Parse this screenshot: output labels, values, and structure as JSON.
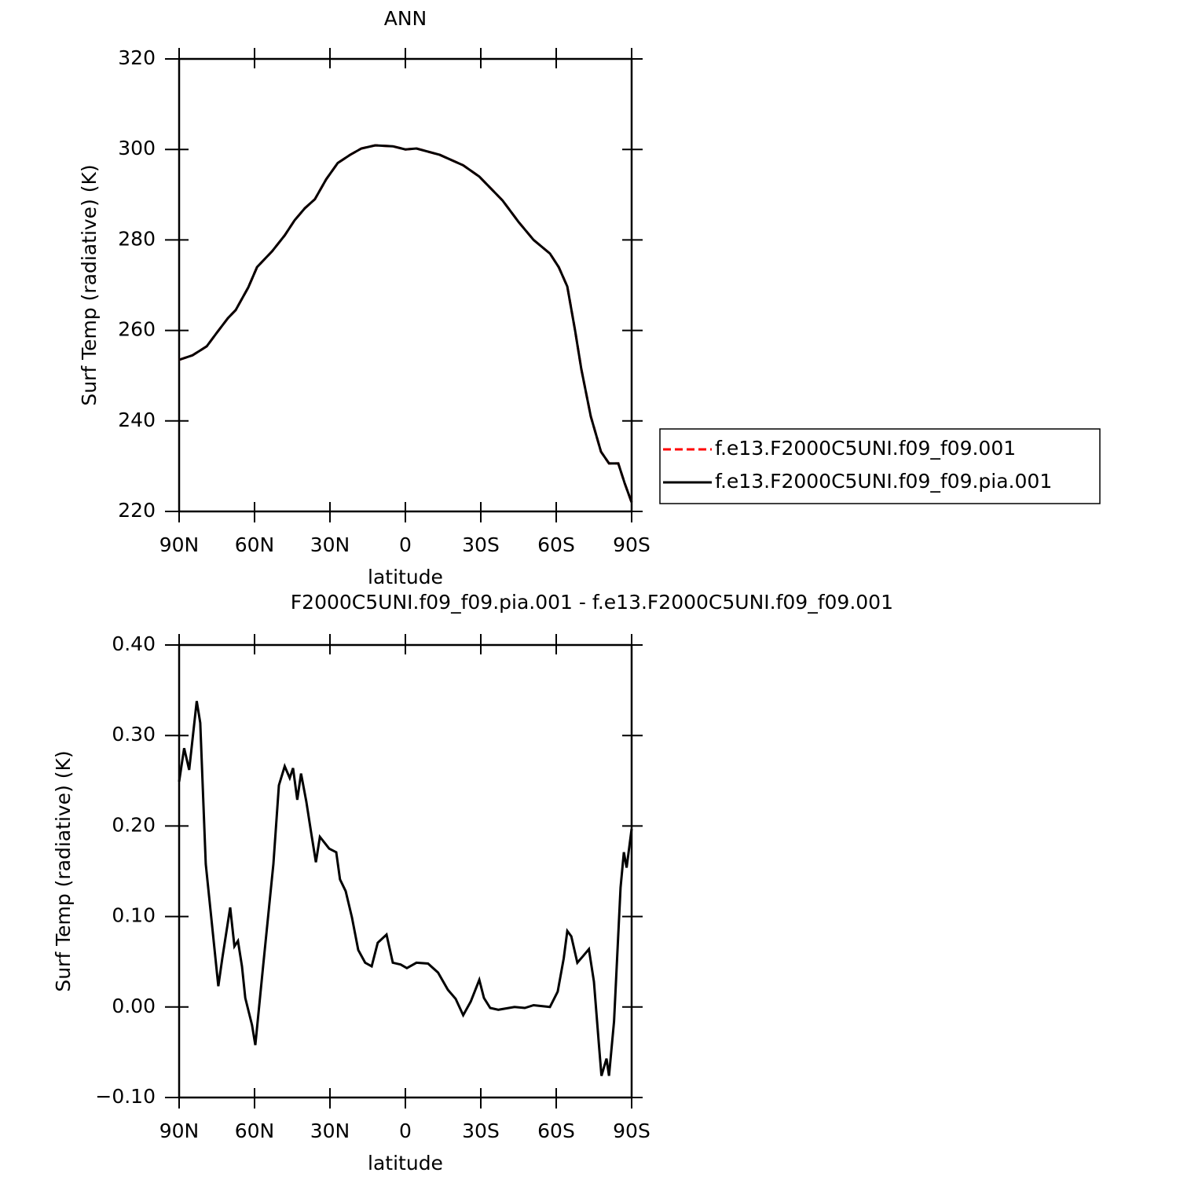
{
  "chart_data": [
    {
      "type": "line",
      "title": "ANN",
      "x_label": "latitude",
      "y_label": "Surf Temp (radiative) (K)",
      "x": [
        90,
        84.7,
        79,
        75,
        70.6,
        67.5,
        62.5,
        59,
        53,
        48,
        44,
        40,
        36,
        31.5,
        26.9,
        22,
        17.5,
        12,
        5,
        0,
        -4.4,
        -13.7,
        -23,
        -29.4,
        -38.7,
        -45,
        -51,
        -57.5,
        -61,
        -64.4,
        -67.5,
        -70,
        -73.75,
        -77.8,
        -81,
        -84.7,
        -87.2,
        -90
      ],
      "series": [
        {
          "name": "f.e13.F2000C5UNI.f09_f09.001",
          "color": "#ff0000",
          "linestyle": "dashed",
          "values": [
            253.5,
            254.5,
            256.5,
            259.5,
            262.7,
            264.5,
            269.5,
            274,
            277.5,
            281,
            284.4,
            287,
            289,
            293.4,
            297,
            298.8,
            300.2,
            300.9,
            300.7,
            300,
            300.2,
            298.8,
            296.5,
            294,
            288.7,
            284,
            280,
            277,
            274,
            269.7,
            260,
            251.4,
            241,
            233.2,
            230.6,
            230.6,
            226.3,
            222
          ]
        },
        {
          "name": "f.e13.F2000C5UNI.f09_f09.pia.001",
          "color": "#000000",
          "linestyle": "solid",
          "values": [
            253.5,
            254.5,
            256.5,
            259.5,
            262.7,
            264.5,
            269.5,
            274,
            277.5,
            281,
            284.4,
            287,
            289,
            293.4,
            297,
            298.8,
            300.2,
            300.9,
            300.7,
            300,
            300.2,
            298.8,
            296.5,
            294,
            288.7,
            284,
            280,
            277,
            274,
            269.7,
            260,
            251.4,
            241,
            233.2,
            230.6,
            230.6,
            226.3,
            222
          ]
        }
      ],
      "xlim": [
        90,
        -90
      ],
      "xticks": [
        {
          "value": 90,
          "label": "90N"
        },
        {
          "value": 60,
          "label": "60N"
        },
        {
          "value": 30,
          "label": "30N"
        },
        0,
        {
          "value": -30,
          "label": "30S"
        },
        {
          "value": -60,
          "label": "60S"
        },
        {
          "value": -90,
          "label": "90S"
        }
      ],
      "ylim": [
        220,
        320
      ],
      "yticks": [
        220,
        240,
        260,
        280,
        300,
        320
      ],
      "legend": "right"
    },
    {
      "type": "line",
      "title": "F2000C5UNI.f09_f09.pia.001 - f.e13.F2000C5UNI.f09_f09.001",
      "x_label": "latitude",
      "y_label": "Surf Temp (radiative) (K)",
      "x": [
        90,
        88,
        86,
        83,
        81.6,
        79.4,
        74.4,
        72.8,
        69.7,
        68,
        66.6,
        65,
        63.7,
        61,
        59.7,
        56.6,
        52.5,
        50.3,
        48,
        46,
        44.7,
        43,
        41.5,
        39.4,
        37.5,
        35.6,
        34,
        32,
        30.3,
        27.5,
        26,
        23.75,
        21.25,
        18.75,
        16,
        13.4,
        11,
        7.5,
        5,
        1.9,
        -0.6,
        -4.4,
        -9,
        -13,
        -16.9,
        -20,
        -23,
        -26,
        -29.4,
        -31.25,
        -33.75,
        -37,
        -43.4,
        -47.5,
        -51,
        -57.5,
        -60.6,
        -63,
        -64.4,
        -66,
        -68.4,
        -70.6,
        -73,
        -75,
        -77,
        -78,
        -80,
        -81,
        -83,
        -85.6,
        -86.9,
        -88,
        -90
      ],
      "series": [
        {
          "color": "#000000",
          "linestyle": "solid",
          "values": [
            0.249,
            0.286,
            0.262,
            0.338,
            0.314,
            0.158,
            0.023,
            0.054,
            0.11,
            0.067,
            0.073,
            0.045,
            0.01,
            -0.02,
            -0.042,
            0.045,
            0.158,
            0.245,
            0.266,
            0.253,
            0.264,
            0.229,
            0.258,
            0.227,
            0.193,
            0.16,
            0.188,
            0.181,
            0.175,
            0.171,
            0.141,
            0.128,
            0.099,
            0.063,
            0.049,
            0.045,
            0.071,
            0.08,
            0.049,
            0.047,
            0.043,
            0.049,
            0.048,
            0.038,
            0.019,
            0.009,
            -0.009,
            0.006,
            0.03,
            0.01,
            -0.001,
            -0.003,
            0.0,
            -0.001,
            0.002,
            0.0,
            0.017,
            0.054,
            0.084,
            0.078,
            0.049,
            0.056,
            0.064,
            0.028,
            -0.042,
            -0.076,
            -0.057,
            -0.076,
            -0.016,
            0.132,
            0.171,
            0.154,
            0.197
          ]
        }
      ],
      "xlim": [
        90,
        -90
      ],
      "xticks": [
        {
          "value": 90,
          "label": "90N"
        },
        {
          "value": 60,
          "label": "60N"
        },
        {
          "value": 30,
          "label": "30N"
        },
        0,
        {
          "value": -30,
          "label": "30S"
        },
        {
          "value": -60,
          "label": "60S"
        },
        {
          "value": -90,
          "label": "90S"
        }
      ],
      "ylim": [
        -0.1,
        0.4
      ],
      "yticks": [
        {
          "value": -0.1,
          "label": "−0.10"
        },
        {
          "value": 0,
          "label": "0.00"
        },
        {
          "value": 0.1,
          "label": "0.10"
        },
        {
          "value": 0.2,
          "label": "0.20"
        },
        {
          "value": 0.3,
          "label": "0.30"
        },
        {
          "value": 0.4,
          "label": "0.40"
        }
      ]
    }
  ]
}
